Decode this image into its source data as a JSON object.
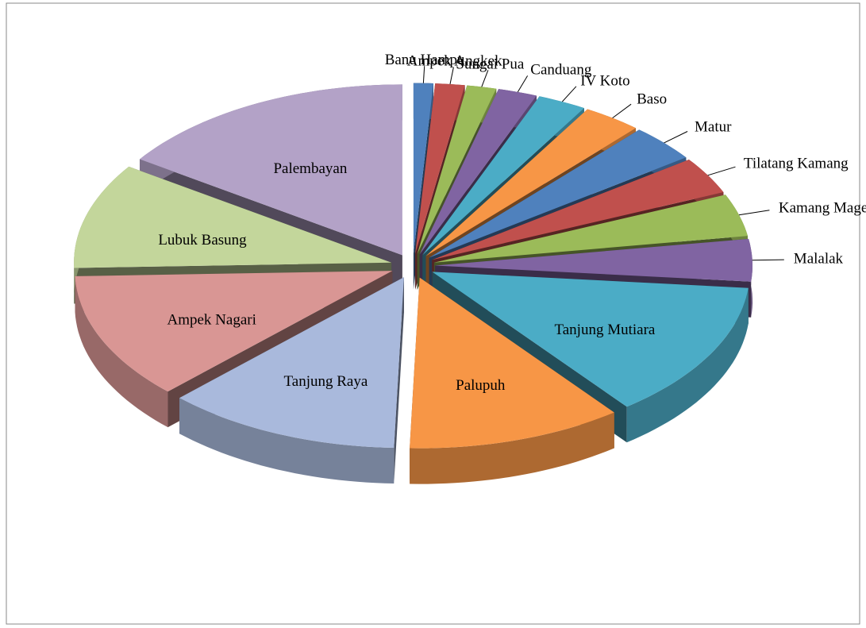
{
  "chart_data": {
    "type": "pie",
    "categories": [
      "Banu Hampu",
      "Ampek Angkek",
      "Sungai Pua",
      "Canduang",
      "IV Koto",
      "Baso",
      "Matur",
      "Tilatang Kamang",
      "Kamang Magek",
      "Malalak",
      "Tanjung Mutiara",
      "Palupuh",
      "Tanjung Raya",
      "Ampek Nagari",
      "Lubuk Basung",
      "Palembayan"
    ],
    "values": [
      1,
      1.5,
      1.5,
      2,
      2.5,
      3,
      3.5,
      3.5,
      4,
      4,
      13,
      11,
      12,
      12,
      10,
      15.5
    ],
    "colors": [
      "#4f81bd",
      "#c0504d",
      "#9bbb59",
      "#8064a2",
      "#4bacc6",
      "#f79646",
      "#4f81bd",
      "#c0504d",
      "#9bbb59",
      "#8064a2",
      "#4bacc6",
      "#f79646",
      "#a9b9dc",
      "#d99694",
      "#c3d69b",
      "#b3a2c7"
    ]
  }
}
